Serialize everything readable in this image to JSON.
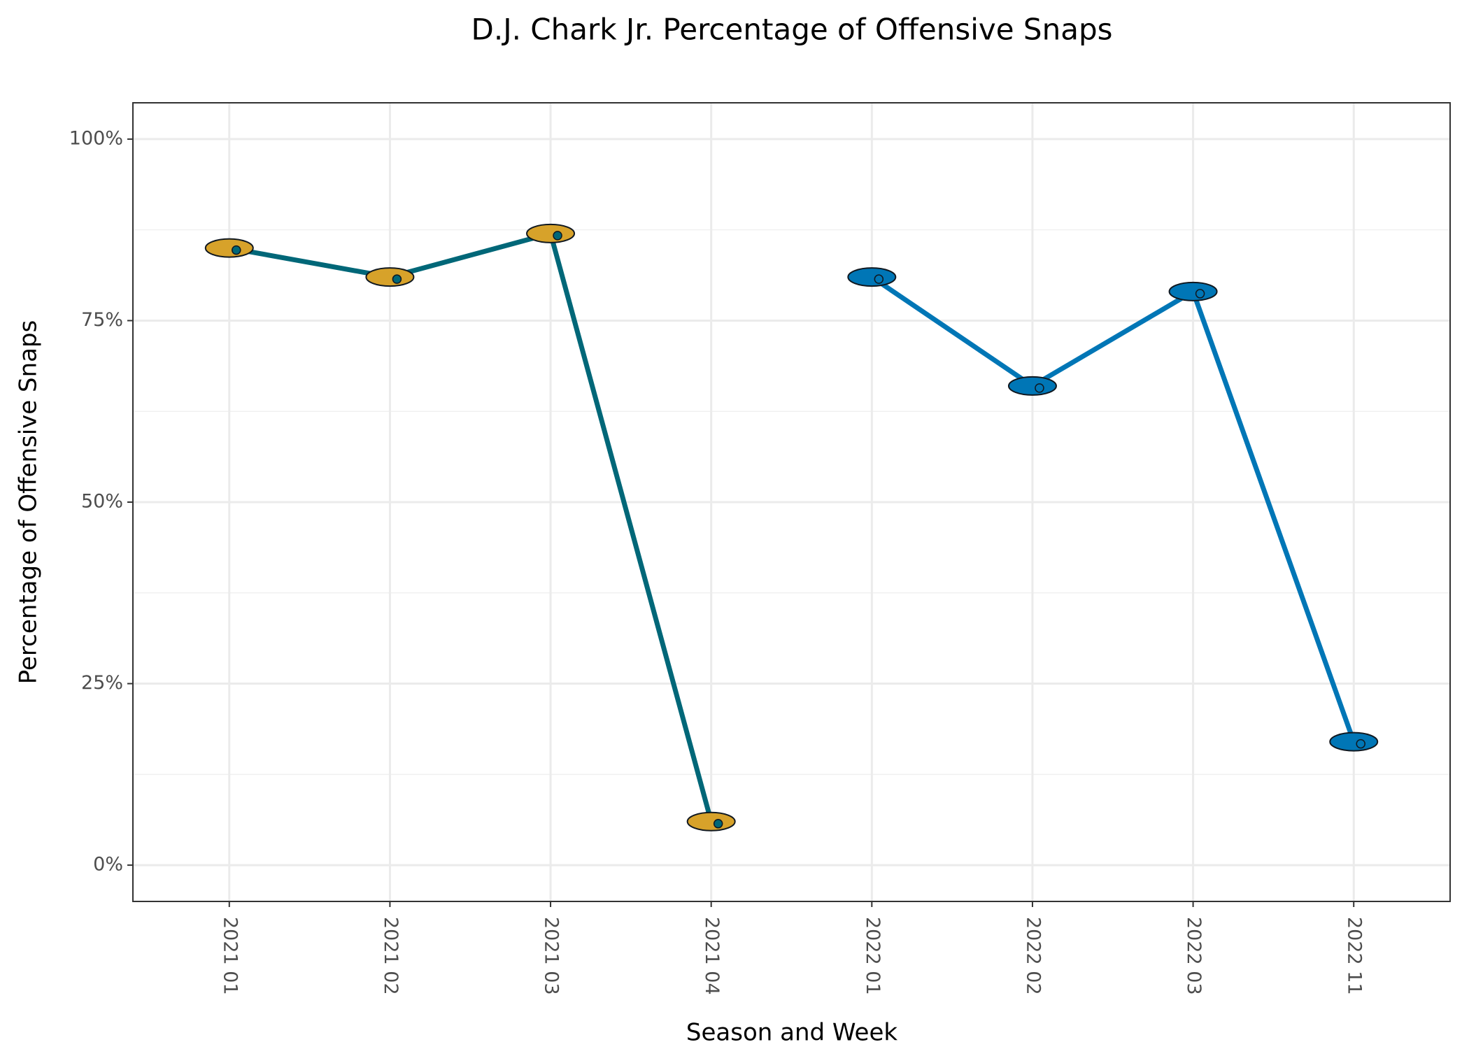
{
  "chart_data": {
    "type": "line",
    "title": "D.J. Chark Jr. Percentage of Offensive Snaps",
    "x_label": "Season and Week",
    "y_label": "Percentage of Offensive Snaps",
    "categories": [
      "2021 01",
      "2021 02",
      "2021 03",
      "2021 04",
      "2022 01",
      "2022 02",
      "2022 03",
      "2022 11"
    ],
    "series": [
      {
        "color": "#006778",
        "marker_color": "#D7A22A",
        "values": [
          85,
          81,
          87,
          6,
          null,
          null,
          null,
          null
        ]
      },
      {
        "color": "#0076B6",
        "marker_color": "#0076B6",
        "values": [
          null,
          null,
          null,
          null,
          81,
          66,
          79,
          17
        ]
      }
    ],
    "ylim": [
      -5,
      105
    ],
    "yticks": [
      {
        "value": 0,
        "label": "0%"
      },
      {
        "value": 25,
        "label": "25%"
      },
      {
        "value": 50,
        "label": "50%"
      },
      {
        "value": 75,
        "label": "75%"
      },
      {
        "value": 100,
        "label": "100%"
      }
    ],
    "y_minor_ticks": [
      12.5,
      37.5,
      62.5,
      87.5
    ],
    "grid": true
  }
}
